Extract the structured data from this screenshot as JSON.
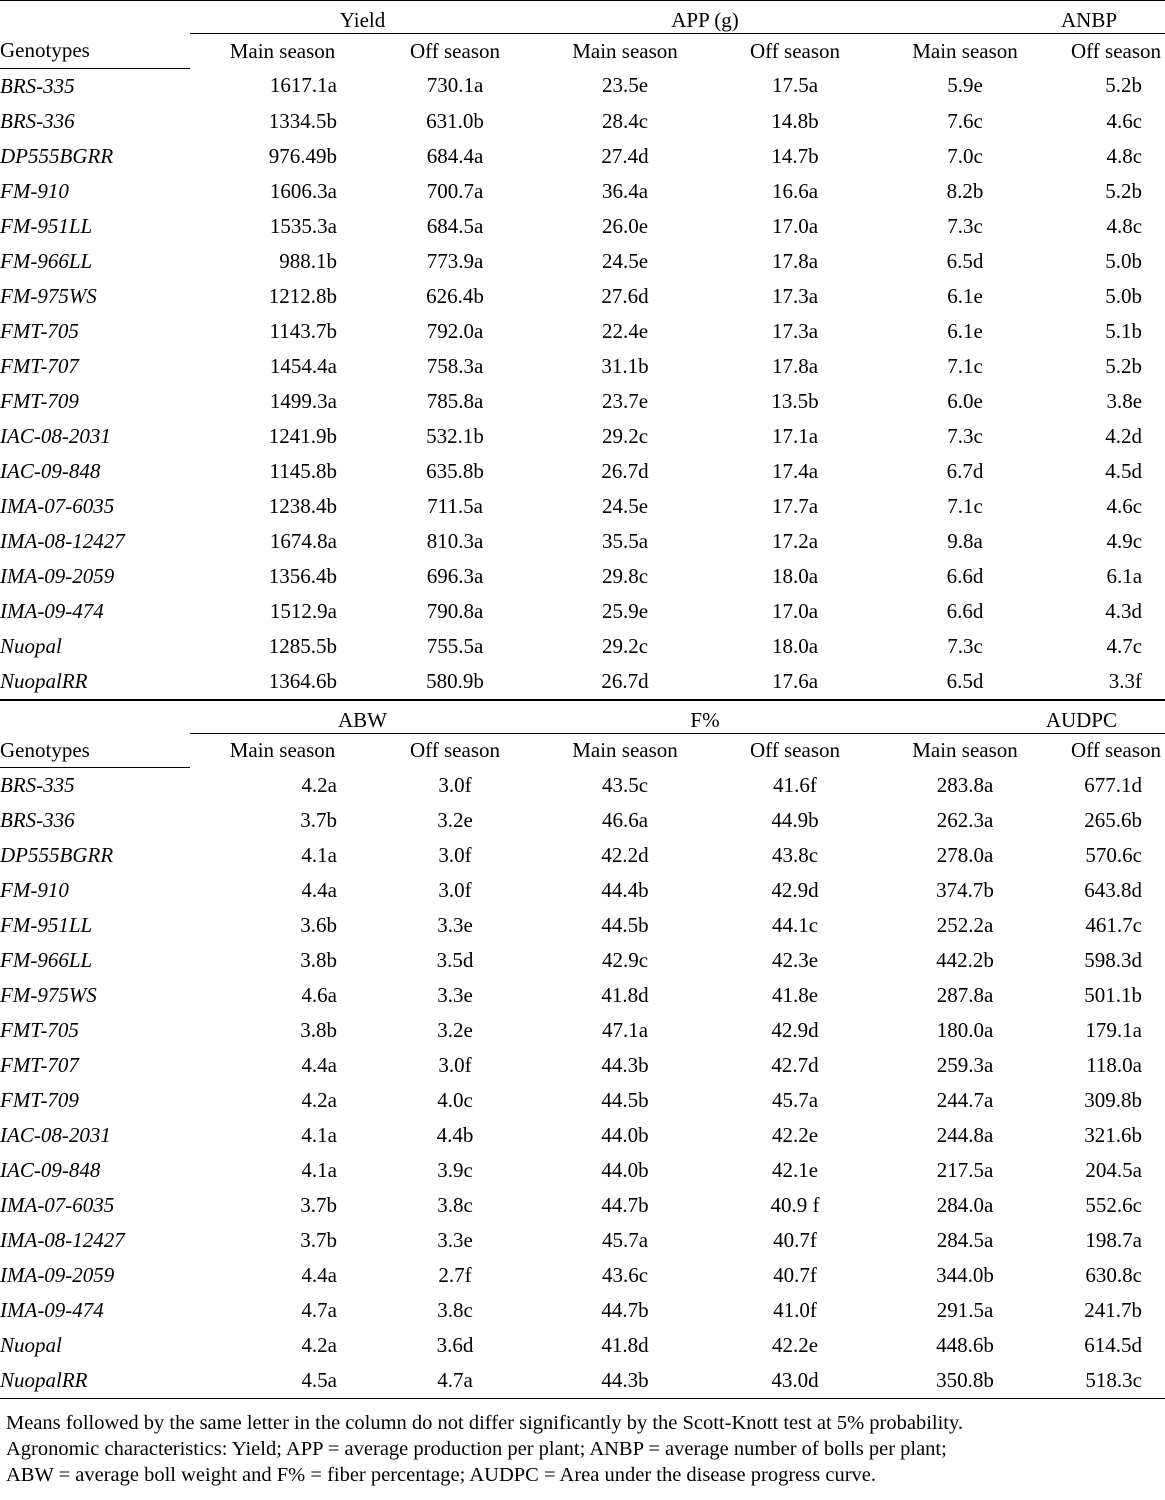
{
  "tables": [
    {
      "groups": [
        "Yield",
        "APP (g)",
        "ANBP"
      ],
      "genotype_header": "Genotypes",
      "subheaders": [
        "Main season",
        "Off season",
        "Main season",
        "Off season",
        "Main season",
        "Off season"
      ],
      "rows": [
        {
          "genotype": "BRS-335",
          "values": [
            "1617.1a",
            "730.1a",
            "23.5e",
            "17.5a",
            "5.9e",
            "5.2b"
          ]
        },
        {
          "genotype": "BRS-336",
          "values": [
            "1334.5b",
            "631.0b",
            "28.4c",
            "14.8b",
            "7.6c",
            "4.6c"
          ]
        },
        {
          "genotype": "DP555BGRR",
          "values": [
            "976.49b",
            "684.4a",
            "27.4d",
            "14.7b",
            "7.0c",
            "4.8c"
          ]
        },
        {
          "genotype": "FM-910",
          "values": [
            "1606.3a",
            "700.7a",
            "36.4a",
            "16.6a",
            "8.2b",
            "5.2b"
          ]
        },
        {
          "genotype": "FM-951LL",
          "values": [
            "1535.3a",
            "684.5a",
            "26.0e",
            "17.0a",
            "7.3c",
            "4.8c"
          ]
        },
        {
          "genotype": "FM-966LL",
          "values": [
            "988.1b",
            "773.9a",
            "24.5e",
            "17.8a",
            "6.5d",
            "5.0b"
          ]
        },
        {
          "genotype": "FM-975WS",
          "values": [
            "1212.8b",
            "626.4b",
            "27.6d",
            "17.3a",
            "6.1e",
            "5.0b"
          ]
        },
        {
          "genotype": "FMT-705",
          "values": [
            "1143.7b",
            "792.0a",
            "22.4e",
            "17.3a",
            "6.1e",
            "5.1b"
          ]
        },
        {
          "genotype": "FMT-707",
          "values": [
            "1454.4a",
            "758.3a",
            "31.1b",
            "17.8a",
            "7.1c",
            "5.2b"
          ]
        },
        {
          "genotype": "FMT-709",
          "values": [
            "1499.3a",
            "785.8a",
            "23.7e",
            "13.5b",
            "6.0e",
            "3.8e"
          ]
        },
        {
          "genotype": "IAC-08-2031",
          "values": [
            "1241.9b",
            "532.1b",
            "29.2c",
            "17.1a",
            "7.3c",
            "4.2d"
          ]
        },
        {
          "genotype": "IAC-09-848",
          "values": [
            "1145.8b",
            "635.8b",
            "26.7d",
            "17.4a",
            "6.7d",
            "4.5d"
          ]
        },
        {
          "genotype": "IMA-07-6035",
          "values": [
            "1238.4b",
            "711.5a",
            "24.5e",
            "17.7a",
            "7.1c",
            "4.6c"
          ]
        },
        {
          "genotype": "IMA-08-12427",
          "values": [
            "1674.8a",
            "810.3a",
            "35.5a",
            "17.2a",
            "9.8a",
            "4.9c"
          ]
        },
        {
          "genotype": "IMA-09-2059",
          "values": [
            "1356.4b",
            "696.3a",
            "29.8c",
            "18.0a",
            "6.6d",
            "6.1a"
          ]
        },
        {
          "genotype": "IMA-09-474",
          "values": [
            "1512.9a",
            "790.8a",
            "25.9e",
            "17.0a",
            "6.6d",
            "4.3d"
          ]
        },
        {
          "genotype": "Nuopal",
          "values": [
            "1285.5b",
            "755.5a",
            "29.2c",
            "18.0a",
            "7.3c",
            "4.7c"
          ]
        },
        {
          "genotype": "NuopalRR",
          "values": [
            "1364.6b",
            "580.9b",
            "26.7d",
            "17.6a",
            "6.5d",
            "3.3f"
          ]
        }
      ]
    },
    {
      "groups": [
        "ABW",
        "F%",
        "AUDPC"
      ],
      "genotype_header": "Genotypes",
      "subheaders": [
        "Main season",
        "Off season",
        "Main season",
        "Off season",
        "Main season",
        "Off season"
      ],
      "rows": [
        {
          "genotype": "BRS-335",
          "values": [
            "4.2a",
            "3.0f",
            "43.5c",
            "41.6f",
            "283.8a",
            "677.1d"
          ]
        },
        {
          "genotype": "BRS-336",
          "values": [
            "3.7b",
            "3.2e",
            "46.6a",
            "44.9b",
            "262.3a",
            "265.6b"
          ]
        },
        {
          "genotype": "DP555BGRR",
          "values": [
            "4.1a",
            "3.0f",
            "42.2d",
            "43.8c",
            "278.0a",
            "570.6c"
          ]
        },
        {
          "genotype": "FM-910",
          "values": [
            "4.4a",
            "3.0f",
            "44.4b",
            "42.9d",
            "374.7b",
            "643.8d"
          ]
        },
        {
          "genotype": "FM-951LL",
          "values": [
            "3.6b",
            "3.3e",
            "44.5b",
            "44.1c",
            "252.2a",
            "461.7c"
          ]
        },
        {
          "genotype": "FM-966LL",
          "values": [
            "3.8b",
            "3.5d",
            "42.9c",
            "42.3e",
            "442.2b",
            "598.3d"
          ]
        },
        {
          "genotype": "FM-975WS",
          "values": [
            "4.6a",
            "3.3e",
            "41.8d",
            "41.8e",
            "287.8a",
            "501.1b"
          ]
        },
        {
          "genotype": "FMT-705",
          "values": [
            "3.8b",
            "3.2e",
            "47.1a",
            "42.9d",
            "180.0a",
            "179.1a"
          ]
        },
        {
          "genotype": "FMT-707",
          "values": [
            "4.4a",
            "3.0f",
            "44.3b",
            "42.7d",
            "259.3a",
            "118.0a"
          ]
        },
        {
          "genotype": "FMT-709",
          "values": [
            "4.2a",
            "4.0c",
            "44.5b",
            "45.7a",
            "244.7a",
            "309.8b"
          ]
        },
        {
          "genotype": "IAC-08-2031",
          "values": [
            "4.1a",
            "4.4b",
            "44.0b",
            "42.2e",
            "244.8a",
            "321.6b"
          ]
        },
        {
          "genotype": "IAC-09-848",
          "values": [
            "4.1a",
            "3.9c",
            "44.0b",
            "42.1e",
            "217.5a",
            "204.5a"
          ]
        },
        {
          "genotype": "IMA-07-6035",
          "values": [
            "3.7b",
            "3.8c",
            "44.7b",
            "40.9 f",
            "284.0a",
            "552.6c"
          ]
        },
        {
          "genotype": "IMA-08-12427",
          "values": [
            "3.7b",
            "3.3e",
            "45.7a",
            "40.7f",
            "284.5a",
            "198.7a"
          ]
        },
        {
          "genotype": "IMA-09-2059",
          "values": [
            "4.4a",
            "2.7f",
            "43.6c",
            "40.7f",
            "344.0b",
            "630.8c"
          ]
        },
        {
          "genotype": "IMA-09-474",
          "values": [
            "4.7a",
            "3.8c",
            "44.7b",
            "41.0f",
            "291.5a",
            "241.7b"
          ]
        },
        {
          "genotype": "Nuopal",
          "values": [
            "4.2a",
            "3.6d",
            "41.8d",
            "42.2e",
            "448.6b",
            "614.5d"
          ]
        },
        {
          "genotype": "NuopalRR",
          "values": [
            "4.5a",
            "4.7a",
            "44.3b",
            "43.0d",
            "350.8b",
            "518.3c"
          ]
        }
      ]
    }
  ],
  "notes": [
    "Means followed by the same letter in the column do not differ significantly by the Scott-Knott test at 5% probability.",
    "Agronomic characteristics: Yield; APP = average production per plant; ANBP = average number of bolls per plant;",
    "ABW = average boll weight and F% = fiber percentage; AUDPC = Area under the disease progress curve."
  ]
}
